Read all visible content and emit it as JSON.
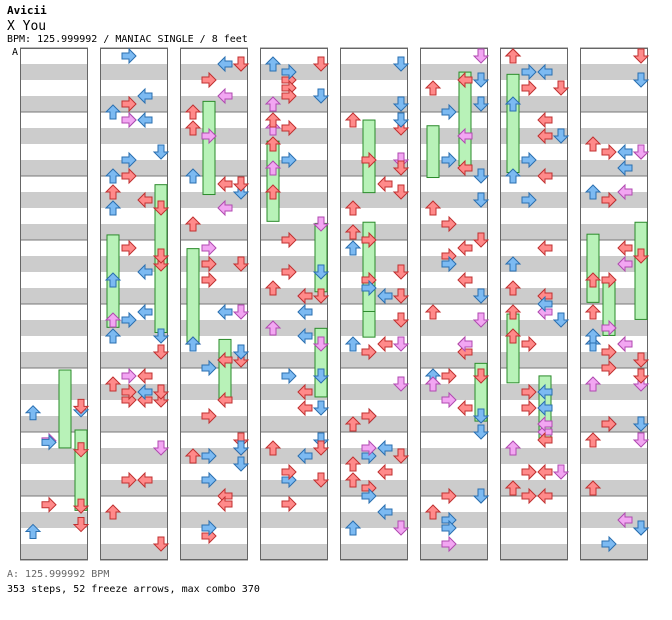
{
  "header": {
    "artist": "Avicii",
    "title": "X You",
    "info": "BPM: 125.999992 / MANIAC SINGLE / 8 feet",
    "section_marker": "A"
  },
  "footer": {
    "bpm_line": "A: 125.999992 BPM",
    "stats": "353 steps, 52 freeze arrows, max combo 370"
  },
  "chart_meta": {
    "columns": 8,
    "measures_per_column": 8,
    "colors": {
      "red": "#ff8a8a",
      "blue": "#7cbaf2",
      "pink": "#f2a6f2",
      "freeze": "#b8f2b8",
      "shade": "#cccccc"
    }
  }
}
